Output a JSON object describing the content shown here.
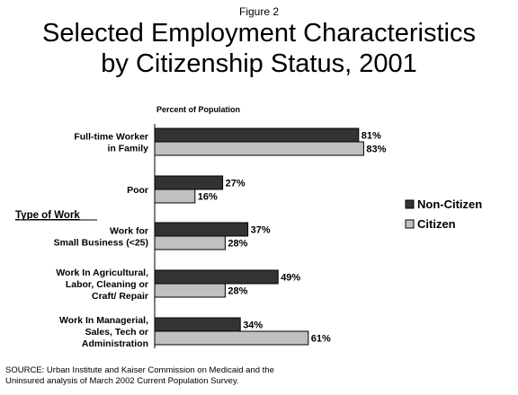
{
  "figure_label": "Figure 2",
  "title_lines": [
    "Selected Employment Characteristics",
    "by Citizenship Status, 2001"
  ],
  "source_lines": [
    "SOURCE: Urban Institute and Kaiser Commission on Medicaid and the",
    "Uninsured analysis of March 2002 Current Population Survey."
  ],
  "colors": {
    "non_citizen": "#333333",
    "citizen": "#c0c0c0"
  },
  "chart_data": {
    "type": "bar",
    "orientation": "horizontal",
    "ylabel": "Percent of Population",
    "section_label": "Type of Work",
    "categories": [
      [
        "Full-time Worker",
        "in Family"
      ],
      [
        "Poor"
      ],
      [
        "Work for",
        "Small Business (<25)"
      ],
      [
        "Work In Agricultural,",
        "Labor, Cleaning or",
        "Craft/ Repair"
      ],
      [
        "Work In Managerial,",
        "Sales, Tech or",
        "Administration"
      ]
    ],
    "series": [
      {
        "name": "Non-Citizen",
        "values": [
          81,
          27,
          37,
          49,
          34
        ],
        "labels": [
          "81%",
          "27%",
          "37%",
          "49%",
          "34%"
        ]
      },
      {
        "name": "Citizen",
        "values": [
          83,
          16,
          28,
          28,
          61
        ],
        "labels": [
          "83%",
          "16%",
          "28%",
          "28%",
          "61%"
        ]
      }
    ],
    "xlim": [
      0,
      100
    ],
    "legend": "right",
    "grid": false
  }
}
